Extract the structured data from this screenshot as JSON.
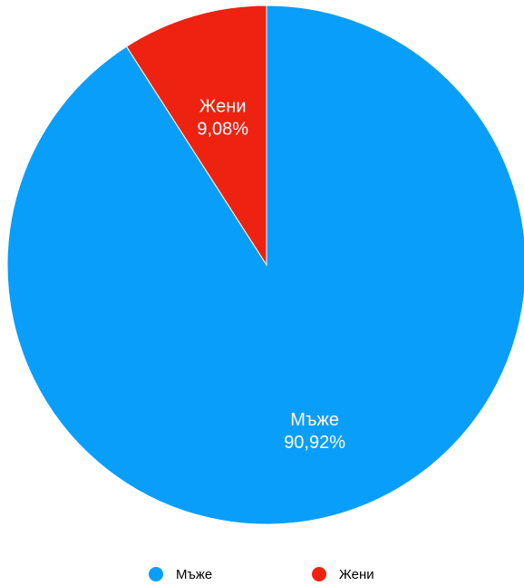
{
  "chart_data": {
    "type": "pie",
    "title": "",
    "slices": [
      {
        "label": "Мъже",
        "value": 90.92,
        "value_label": "90,92%",
        "color": "#0a9efb"
      },
      {
        "label": "Жени",
        "value": 9.08,
        "value_label": "9,08%",
        "color": "#ee2211"
      }
    ],
    "legend": {
      "position": "bottom",
      "entries": [
        "Мъже",
        "Жени"
      ]
    },
    "start_angle": "top, clockwise",
    "data_labels": "inside"
  }
}
